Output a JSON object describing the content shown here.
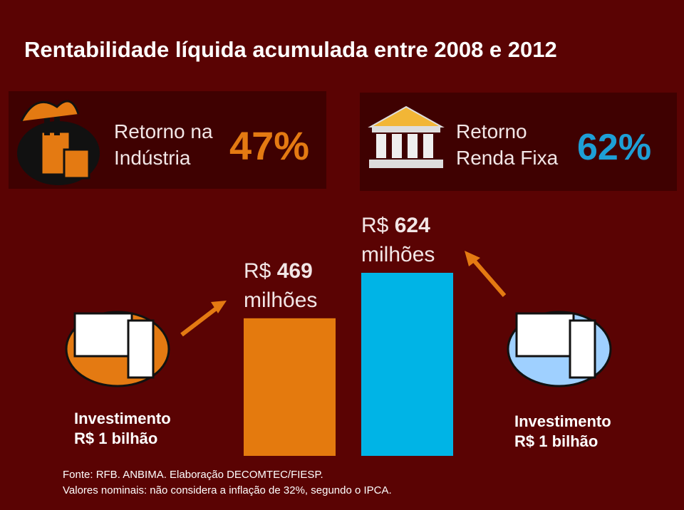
{
  "title": "Rentabilidade líquida acumulada entre 2008 e 2012",
  "panels": [
    {
      "label_lines": [
        "Retorno na",
        "Indústria"
      ],
      "percent": "47%",
      "color": "#e47a12"
    },
    {
      "label_lines": [
        "Retorno",
        "Renda Fixa"
      ],
      "percent": "62%",
      "color": "#1e9fd6"
    }
  ],
  "bars": [
    {
      "prefix": "R$",
      "value": 469,
      "unit": "milhões",
      "color": "#e47a0e"
    },
    {
      "prefix": "R$",
      "value": 624,
      "unit": "milhões",
      "color": "#00b4e6"
    }
  ],
  "investments": [
    [
      "Investimento",
      "R$ 1 bilhão"
    ],
    [
      "Investimento",
      "R$ 1 bilhão"
    ]
  ],
  "source": [
    "Fonte: RFB. ANBIMA. Elaboração DECOMTEC/FIESP.",
    "Valores nominais: não considera a inflação de 32%, segundo o IPCA."
  ]
}
